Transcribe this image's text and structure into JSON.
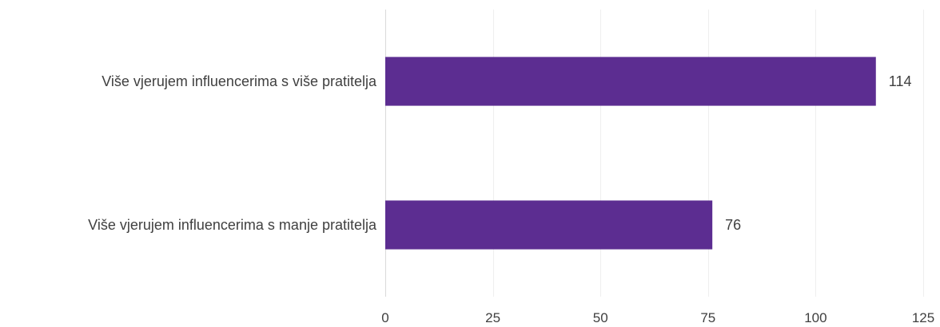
{
  "chart_data": {
    "type": "bar",
    "orientation": "horizontal",
    "categories": [
      "Više vjerujem influencerima s više pratitelja",
      "Više vjerujem influencerima s manje pratitelja"
    ],
    "values": [
      114,
      76
    ],
    "data_labels": [
      "114",
      "76"
    ],
    "xlim": [
      0,
      125
    ],
    "xticks": [
      0,
      25,
      50,
      75,
      100,
      125
    ],
    "xtick_labels": [
      "0",
      "25",
      "50",
      "75",
      "100",
      "125"
    ],
    "grid": true,
    "legend": "none",
    "colors": {
      "bar": "#5c2d91",
      "grid": "#efefef",
      "axis": "#d9d9d9",
      "text": "#404040"
    }
  }
}
